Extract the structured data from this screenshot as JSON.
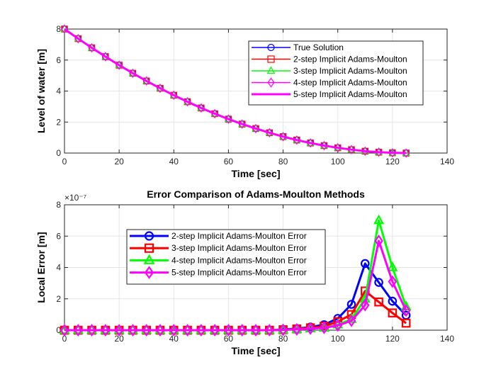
{
  "chart_data": [
    {
      "type": "line",
      "xlabel": "Time [sec]",
      "ylabel": "Level of water [m]",
      "xlim": [
        0,
        140
      ],
      "ylim": [
        0,
        8
      ],
      "xticks": [
        "0",
        "20",
        "40",
        "60",
        "80",
        "100",
        "120",
        "140"
      ],
      "yticks": [
        "0",
        "2",
        "4",
        "6",
        "8"
      ],
      "grid": true,
      "legend_position": "top-right",
      "x": [
        0,
        5,
        10,
        15,
        20,
        25,
        30,
        35,
        40,
        45,
        50,
        55,
        60,
        65,
        70,
        75,
        80,
        85,
        90,
        95,
        100,
        105,
        110,
        115,
        120,
        125
      ],
      "series": [
        {
          "name": "True Solution",
          "color": "#0000ff",
          "marker": "circle",
          "values": [
            8.0,
            7.38,
            6.79,
            6.22,
            5.67,
            5.15,
            4.65,
            4.18,
            3.73,
            3.31,
            2.91,
            2.54,
            2.19,
            1.87,
            1.58,
            1.31,
            1.06,
            0.84,
            0.65,
            0.48,
            0.34,
            0.22,
            0.12,
            0.055,
            0.015,
            0.0
          ]
        },
        {
          "name": "2-step Implicit Adams-Moulton",
          "color": "#ff0000",
          "marker": "square",
          "values": [
            8.0,
            7.38,
            6.79,
            6.22,
            5.67,
            5.15,
            4.65,
            4.18,
            3.73,
            3.31,
            2.91,
            2.54,
            2.19,
            1.87,
            1.58,
            1.31,
            1.06,
            0.84,
            0.65,
            0.48,
            0.34,
            0.22,
            0.12,
            0.055,
            0.015,
            0.0
          ]
        },
        {
          "name": "3-step Implicit Adams-Moulton",
          "color": "#00ff00",
          "marker": "triangle",
          "values": [
            8.0,
            7.38,
            6.79,
            6.22,
            5.67,
            5.15,
            4.65,
            4.18,
            3.73,
            3.31,
            2.91,
            2.54,
            2.19,
            1.87,
            1.58,
            1.31,
            1.06,
            0.84,
            0.65,
            0.48,
            0.34,
            0.22,
            0.12,
            0.055,
            0.015,
            0.0
          ]
        },
        {
          "name": "4-step Implicit Adams-Moulton",
          "color": "#ff00ff",
          "marker": "diamond",
          "values": [
            8.0,
            7.38,
            6.79,
            6.22,
            5.67,
            5.15,
            4.65,
            4.18,
            3.73,
            3.31,
            2.91,
            2.54,
            2.19,
            1.87,
            1.58,
            1.31,
            1.06,
            0.84,
            0.65,
            0.48,
            0.34,
            0.22,
            0.12,
            0.055,
            0.015,
            0.0
          ]
        },
        {
          "name": "5-step Implicit Adams-Moulton",
          "color": "#ff00ff",
          "marker": "none",
          "values": [
            8.0,
            7.38,
            6.79,
            6.22,
            5.67,
            5.15,
            4.65,
            4.18,
            3.73,
            3.31,
            2.91,
            2.54,
            2.19,
            1.87,
            1.58,
            1.31,
            1.06,
            0.84,
            0.65,
            0.48,
            0.34,
            0.22,
            0.12,
            0.055,
            0.015,
            0.0
          ]
        }
      ]
    },
    {
      "type": "line",
      "title": "Error Comparison of Adams-Moulton Methods",
      "xlabel": "Time [sec]",
      "ylabel": "Local Error [m]",
      "exponent_label": "×10⁻⁷",
      "xlim": [
        0,
        140
      ],
      "ylim": [
        0,
        8
      ],
      "xticks": [
        "0",
        "20",
        "40",
        "60",
        "80",
        "100",
        "120",
        "140"
      ],
      "yticks": [
        "0",
        "2",
        "4",
        "6",
        "8"
      ],
      "grid": true,
      "legend_position": "left-center",
      "x": [
        0,
        5,
        10,
        15,
        20,
        25,
        30,
        35,
        40,
        45,
        50,
        55,
        60,
        65,
        70,
        75,
        80,
        85,
        90,
        95,
        100,
        105,
        110,
        115,
        120,
        125
      ],
      "series": [
        {
          "name": "2-step Implicit Adams-Moulton Error",
          "color": "#0000ff",
          "marker": "circle",
          "values": [
            0,
            0,
            0,
            0,
            0,
            0,
            0,
            0,
            0,
            0,
            0,
            0,
            0,
            0,
            0,
            0,
            0.05,
            0.1,
            0.2,
            0.35,
            0.75,
            1.65,
            4.25,
            3.05,
            1.85,
            0.95
          ]
        },
        {
          "name": "3-step Implicit Adams-Moulton Error",
          "color": "#ff0000",
          "marker": "square",
          "values": [
            0,
            0,
            0,
            0,
            0,
            0,
            0,
            0,
            0,
            0,
            0,
            0,
            0,
            0,
            0,
            0,
            0.03,
            0.08,
            0.15,
            0.25,
            0.55,
            1.0,
            2.5,
            1.8,
            1.1,
            0.45
          ]
        },
        {
          "name": "4-step Implicit Adams-Moulton Error",
          "color": "#00ff00",
          "marker": "triangle",
          "values": [
            0,
            0,
            0,
            0,
            0,
            0,
            0,
            0,
            0,
            0,
            0,
            0,
            0,
            0,
            0,
            0,
            0.02,
            0.05,
            0.1,
            0.15,
            0.35,
            0.7,
            2.0,
            7.0,
            4.0,
            1.5
          ]
        },
        {
          "name": "5-step Implicit Adams-Moulton Error",
          "color": "#ff00ff",
          "marker": "diamond",
          "values": [
            0,
            0,
            0,
            0,
            0,
            0,
            0,
            0,
            0,
            0,
            0,
            0,
            0,
            0,
            0,
            0,
            0.02,
            0.05,
            0.1,
            0.15,
            0.3,
            0.6,
            1.6,
            5.7,
            3.1,
            1.25
          ]
        }
      ]
    }
  ]
}
